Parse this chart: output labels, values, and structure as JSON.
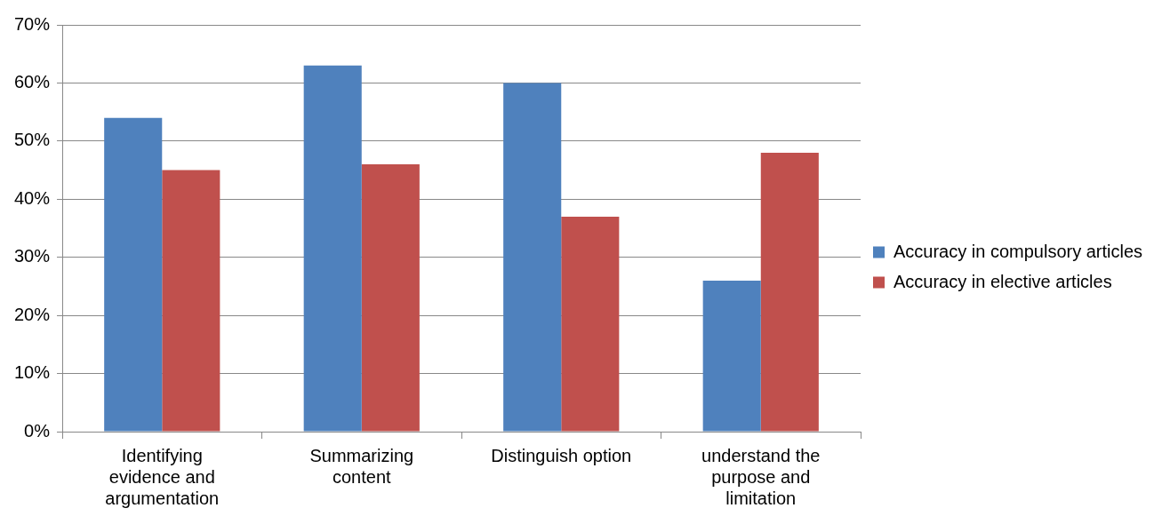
{
  "chart_data": {
    "type": "bar",
    "categories": [
      "Identifying evidence and argumentation",
      "Summarizing content",
      "Distinguish option",
      "understand the purpose and limitation"
    ],
    "series": [
      {
        "name": "Accuracy in compulsory articles",
        "color": "#4f81bd",
        "values": [
          54,
          63,
          60,
          26
        ]
      },
      {
        "name": "Accuracy in elective articles",
        "color": "#c0504d",
        "values": [
          45,
          46,
          37,
          48
        ]
      }
    ],
    "ylim": [
      0,
      70
    ],
    "yticks": [
      {
        "value": 0,
        "label": "0%"
      },
      {
        "value": 10,
        "label": "10%"
      },
      {
        "value": 20,
        "label": "20%"
      },
      {
        "value": 30,
        "label": "30%"
      },
      {
        "value": 40,
        "label": "40%"
      },
      {
        "value": 50,
        "label": "50%"
      },
      {
        "value": 60,
        "label": "60%"
      },
      {
        "value": 70,
        "label": "70%"
      }
    ],
    "grid": "y",
    "legend": "right"
  }
}
